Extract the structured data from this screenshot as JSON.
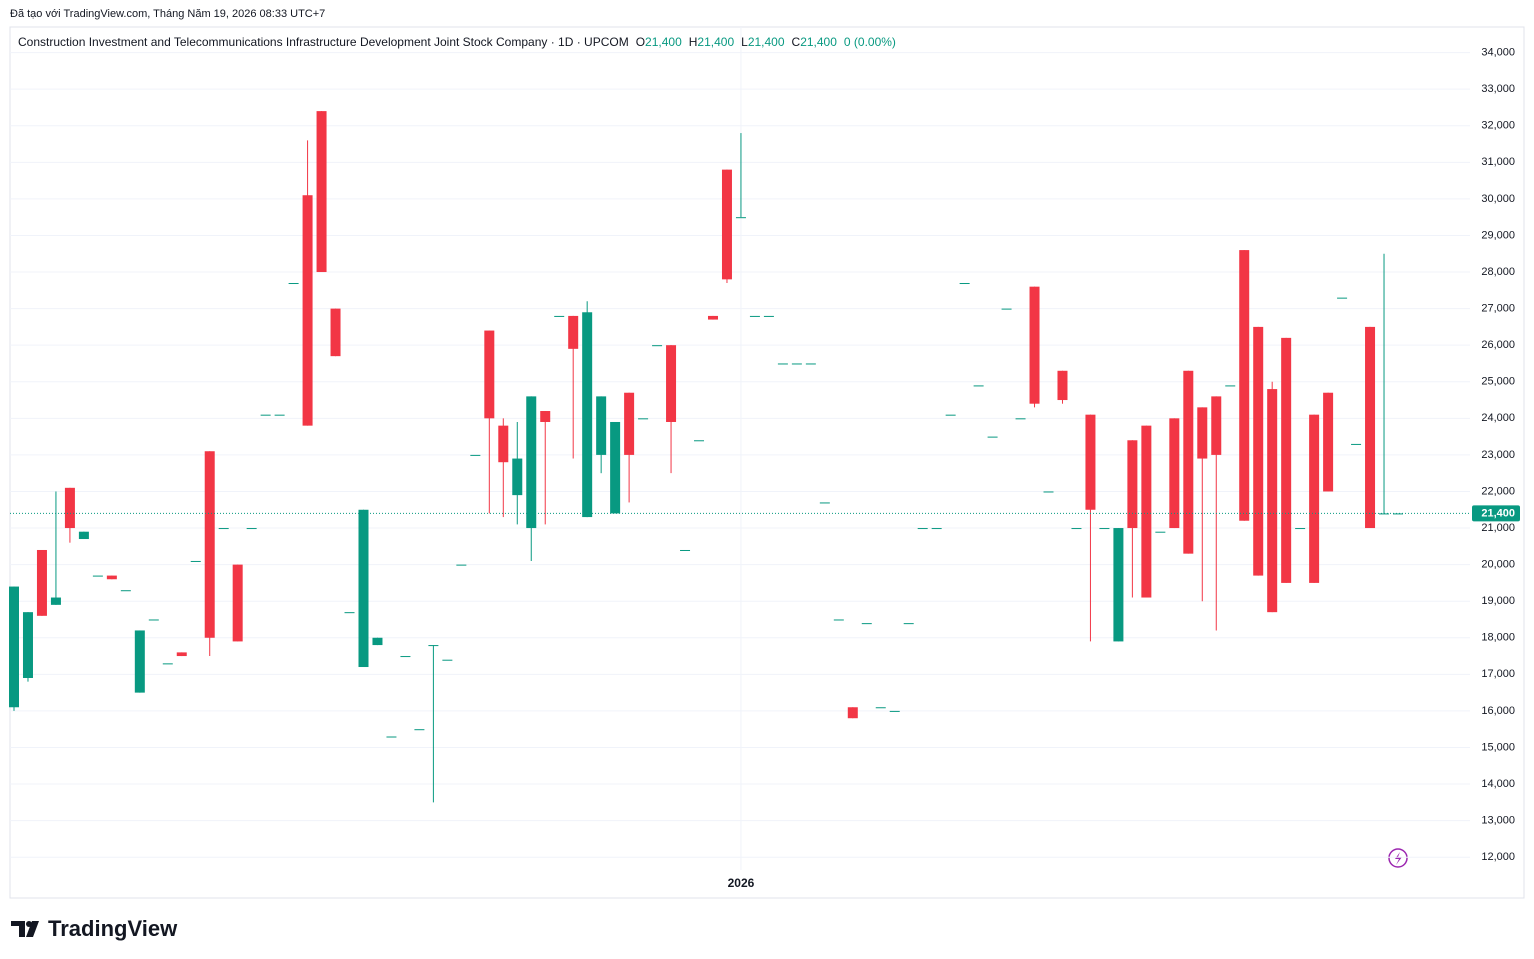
{
  "watermark_top": "Đã tạo với TradingView.com, Tháng Năm 19, 2026 08:33 UTC+7",
  "brand": "TradingView",
  "chart_data": {
    "type": "candlestick",
    "title": "Construction Investment and Telecommunications Infrastructure Development Joint Stock Company · 1D · UPCOM",
    "legend": [
      {
        "key": "O",
        "value": "21,400"
      },
      {
        "key": "H",
        "value": "21,400"
      },
      {
        "key": "L",
        "value": "21,400"
      },
      {
        "key": "C",
        "value": "21,400"
      }
    ],
    "change": "0 (0.00%)",
    "up_color": "#089981",
    "down_color": "#f23645",
    "categories": [
      null,
      null,
      null,
      null,
      null,
      null,
      null,
      null,
      null,
      null,
      null,
      null,
      null,
      null,
      null,
      null,
      null,
      null,
      null,
      null,
      null,
      null,
      null,
      null,
      null,
      null,
      null,
      null,
      null,
      null,
      null,
      null,
      null,
      null,
      null,
      null,
      null,
      null,
      null,
      null,
      null,
      null,
      null,
      null,
      null,
      null,
      null,
      null,
      null,
      null,
      null,
      null,
      "2026",
      null,
      null,
      null,
      null,
      null,
      null,
      null,
      null,
      null,
      null,
      null,
      null,
      null,
      null,
      null,
      null,
      null,
      null,
      null,
      null,
      null,
      null,
      null,
      null,
      null,
      null,
      null,
      null,
      null,
      null,
      null,
      null,
      null,
      null,
      null,
      null,
      null,
      null,
      null,
      null,
      null,
      null,
      null,
      null,
      null,
      null,
      null
    ],
    "open": [
      16100,
      16900,
      20400,
      18900,
      22100,
      20700,
      19700,
      19700,
      19300,
      16500,
      18500,
      17300,
      17600,
      20100,
      23100,
      21000,
      20000,
      21000,
      24100,
      24100,
      27700,
      30100,
      32400,
      27000,
      18700,
      17200,
      17800,
      15300,
      17500,
      15500,
      17800,
      17400,
      20000,
      23000,
      26400,
      23800,
      21900,
      21000,
      24200,
      26800,
      26800,
      21300,
      23000,
      21400,
      24700,
      24000,
      26000,
      26000,
      20400,
      23400,
      26800,
      30800,
      29500,
      26800,
      26800,
      25500,
      25500,
      25500,
      21700,
      18500,
      16100,
      18400,
      16100,
      16000,
      18400,
      21000,
      21000,
      24100,
      27700,
      24900,
      23500,
      27000,
      24000,
      27600,
      22000,
      25300,
      21000,
      24100,
      21000,
      17900,
      23400,
      23800,
      20900,
      24000,
      25300,
      24300,
      24600,
      24900,
      28600,
      26500,
      24800,
      26200,
      21000,
      24100,
      24700,
      27300,
      23300,
      26500,
      21400,
      21400
    ],
    "high": [
      19400,
      18700,
      20400,
      22000,
      22100,
      20900,
      19700,
      19700,
      19300,
      18200,
      18500,
      17300,
      17600,
      20100,
      23100,
      21000,
      20000,
      21000,
      24100,
      24100,
      27700,
      31600,
      32400,
      27000,
      18700,
      21500,
      18000,
      15300,
      17500,
      15500,
      17800,
      17400,
      20000,
      23000,
      26400,
      24000,
      23900,
      24600,
      24200,
      26800,
      26800,
      27200,
      24600,
      23900,
      24700,
      24000,
      26000,
      26000,
      20400,
      23400,
      26800,
      30800,
      31800,
      26800,
      26800,
      25500,
      25500,
      25500,
      21700,
      18500,
      16100,
      18400,
      16100,
      16000,
      18400,
      21000,
      21000,
      24100,
      27700,
      24900,
      23500,
      27000,
      24000,
      27600,
      22000,
      25300,
      21000,
      24100,
      21000,
      21000,
      23400,
      23800,
      20900,
      24000,
      25300,
      24300,
      24600,
      24900,
      28600,
      26500,
      25000,
      26200,
      21000,
      24100,
      24700,
      27300,
      23300,
      26500,
      28500,
      21400
    ],
    "low": [
      16000,
      16800,
      18600,
      18900,
      20600,
      20700,
      19700,
      19600,
      19300,
      16500,
      18500,
      17300,
      17500,
      20100,
      17500,
      21000,
      17900,
      21000,
      24100,
      24100,
      27700,
      23800,
      28000,
      25700,
      18700,
      17200,
      17800,
      15300,
      17500,
      15500,
      13500,
      17400,
      20000,
      23000,
      21400,
      21300,
      21100,
      20100,
      21100,
      26800,
      22900,
      21300,
      22500,
      21400,
      21700,
      24000,
      26000,
      22500,
      20400,
      23400,
      26700,
      27700,
      29500,
      26800,
      26800,
      25500,
      25500,
      25500,
      21700,
      18500,
      15800,
      18400,
      16100,
      16000,
      18400,
      21000,
      21000,
      24100,
      27700,
      24900,
      23500,
      27000,
      24000,
      24300,
      22000,
      24400,
      21000,
      17900,
      21000,
      17900,
      19100,
      19100,
      20900,
      21000,
      20300,
      19000,
      18200,
      24900,
      21200,
      19700,
      18700,
      19500,
      21000,
      19500,
      22000,
      27300,
      23300,
      21000,
      21400,
      21400
    ],
    "close": [
      19400,
      18700,
      18600,
      19100,
      21000,
      20900,
      19700,
      19600,
      19300,
      18200,
      18500,
      17300,
      17500,
      20100,
      18000,
      21000,
      17900,
      21000,
      24100,
      24100,
      27700,
      23800,
      28000,
      25700,
      18700,
      21500,
      18000,
      15300,
      17500,
      15500,
      17800,
      17400,
      20000,
      23000,
      24000,
      22800,
      22900,
      24600,
      23900,
      26800,
      25900,
      26900,
      24600,
      23900,
      23000,
      24000,
      26000,
      23900,
      20400,
      23400,
      26700,
      27800,
      29500,
      26800,
      26800,
      25500,
      25500,
      25500,
      21700,
      18500,
      15800,
      18400,
      16100,
      16000,
      18400,
      21000,
      21000,
      24100,
      27700,
      24900,
      23500,
      27000,
      24000,
      24400,
      22000,
      24500,
      21000,
      21500,
      21000,
      21000,
      21000,
      19100,
      20900,
      21000,
      20300,
      22900,
      23000,
      24900,
      21200,
      19700,
      18700,
      19500,
      21000,
      19500,
      22000,
      27300,
      23300,
      21000,
      21400,
      21400
    ],
    "last_price": {
      "value": 21400,
      "label": "21,400"
    },
    "ylim": [
      11650,
      34700
    ],
    "yticks": [
      {
        "value": 12000,
        "label": "12,000"
      },
      {
        "value": 13000,
        "label": "13,000"
      },
      {
        "value": 14000,
        "label": "14,000"
      },
      {
        "value": 15000,
        "label": "15,000"
      },
      {
        "value": 16000,
        "label": "16,000"
      },
      {
        "value": 17000,
        "label": "17,000"
      },
      {
        "value": 18000,
        "label": "18,000"
      },
      {
        "value": 19000,
        "label": "19,000"
      },
      {
        "value": 20000,
        "label": "20,000"
      },
      {
        "value": 21000,
        "label": "21,000"
      },
      {
        "value": 22000,
        "label": "22,000"
      },
      {
        "value": 23000,
        "label": "23,000"
      },
      {
        "value": 24000,
        "label": "24,000"
      },
      {
        "value": 25000,
        "label": "25,000"
      },
      {
        "value": 26000,
        "label": "26,000"
      },
      {
        "value": 27000,
        "label": "27,000"
      },
      {
        "value": 28000,
        "label": "28,000"
      },
      {
        "value": 29000,
        "label": "29,000"
      },
      {
        "value": 30000,
        "label": "30,000"
      },
      {
        "value": 31000,
        "label": "31,000"
      },
      {
        "value": 32000,
        "label": "32,000"
      },
      {
        "value": 33000,
        "label": "33,000"
      },
      {
        "value": 34000,
        "label": "34,000"
      }
    ],
    "grid": true
  }
}
